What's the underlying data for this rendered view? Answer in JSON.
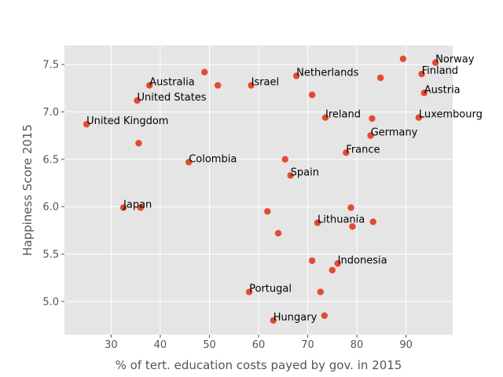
{
  "chart_data": {
    "type": "scatter",
    "title": "",
    "xlabel": "% of tert. education costs payed by gov. in 2015",
    "ylabel": "Happiness Score 2015",
    "xlim": [
      20.5,
      99.5
    ],
    "ylim": [
      4.65,
      7.7
    ],
    "xticks": [
      "30",
      "40",
      "50",
      "60",
      "70",
      "80",
      "90"
    ],
    "yticks": [
      "5.0",
      "5.5",
      "6.0",
      "6.5",
      "7.0",
      "7.5"
    ],
    "xtick_values": [
      30,
      40,
      50,
      60,
      70,
      80,
      90
    ],
    "ytick_values": [
      5.0,
      5.5,
      6.0,
      6.5,
      7.0,
      7.5
    ],
    "grid": true,
    "marker_color": "#E24A33",
    "background_color": "#E5E5E5",
    "points": [
      {
        "x": 96.0,
        "y": 7.52,
        "label": "Norway"
      },
      {
        "x": 89.4,
        "y": 7.56,
        "label": ""
      },
      {
        "x": 93.2,
        "y": 7.4,
        "label": "Finland"
      },
      {
        "x": 84.8,
        "y": 7.36,
        "label": ""
      },
      {
        "x": 93.7,
        "y": 7.2,
        "label": "Austria"
      },
      {
        "x": 92.6,
        "y": 6.94,
        "label": "Luxembourg"
      },
      {
        "x": 83.1,
        "y": 6.93,
        "label": ""
      },
      {
        "x": 82.8,
        "y": 6.75,
        "label": "Germany"
      },
      {
        "x": 77.8,
        "y": 6.57,
        "label": "France"
      },
      {
        "x": 73.6,
        "y": 6.94,
        "label": "Ireland"
      },
      {
        "x": 70.9,
        "y": 7.18,
        "label": ""
      },
      {
        "x": 67.7,
        "y": 7.38,
        "label": "Netherlands"
      },
      {
        "x": 58.5,
        "y": 7.28,
        "label": "Israel"
      },
      {
        "x": 51.7,
        "y": 7.28,
        "label": ""
      },
      {
        "x": 49.0,
        "y": 7.42,
        "label": ""
      },
      {
        "x": 37.8,
        "y": 7.28,
        "label": "Australia"
      },
      {
        "x": 35.3,
        "y": 7.12,
        "label": "United States"
      },
      {
        "x": 25.0,
        "y": 6.87,
        "label": "United Kingdom"
      },
      {
        "x": 35.6,
        "y": 6.67,
        "label": ""
      },
      {
        "x": 45.8,
        "y": 6.47,
        "label": "Colombia"
      },
      {
        "x": 65.4,
        "y": 6.5,
        "label": ""
      },
      {
        "x": 66.5,
        "y": 6.33,
        "label": "Spain"
      },
      {
        "x": 32.5,
        "y": 5.99,
        "label": "Japan"
      },
      {
        "x": 36.0,
        "y": 5.99,
        "label": ""
      },
      {
        "x": 61.8,
        "y": 5.95,
        "label": ""
      },
      {
        "x": 78.8,
        "y": 5.99,
        "label": ""
      },
      {
        "x": 72.0,
        "y": 5.83,
        "label": "Lithuania"
      },
      {
        "x": 79.1,
        "y": 5.79,
        "label": ""
      },
      {
        "x": 83.3,
        "y": 5.84,
        "label": ""
      },
      {
        "x": 64.0,
        "y": 5.72,
        "label": ""
      },
      {
        "x": 70.9,
        "y": 5.43,
        "label": ""
      },
      {
        "x": 76.1,
        "y": 5.4,
        "label": "Indonesia"
      },
      {
        "x": 75.0,
        "y": 5.33,
        "label": ""
      },
      {
        "x": 58.1,
        "y": 5.1,
        "label": "Portugal"
      },
      {
        "x": 72.6,
        "y": 5.1,
        "label": ""
      },
      {
        "x": 73.4,
        "y": 4.85,
        "label": ""
      },
      {
        "x": 63.0,
        "y": 4.8,
        "label": "Hungary"
      }
    ]
  }
}
